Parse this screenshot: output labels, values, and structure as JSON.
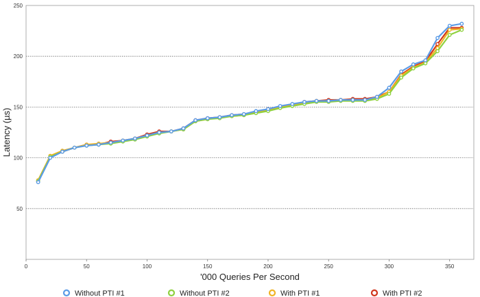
{
  "chart_data": {
    "type": "line",
    "title": "",
    "xlabel": "'000 Queries Per Second",
    "ylabel": "Latency (µs)",
    "xlim": [
      0,
      370
    ],
    "ylim": [
      0,
      250
    ],
    "xticks": [
      0,
      50,
      100,
      150,
      200,
      250,
      300,
      350
    ],
    "yticks": [
      50,
      100,
      150,
      200,
      250
    ],
    "grid": "horizontal-dotted",
    "legend_position": "bottom",
    "x": [
      10,
      20,
      30,
      40,
      50,
      60,
      70,
      80,
      90,
      100,
      110,
      120,
      130,
      140,
      150,
      160,
      170,
      180,
      190,
      200,
      210,
      220,
      230,
      240,
      250,
      260,
      270,
      280,
      290,
      300,
      310,
      320,
      330,
      340,
      350,
      360
    ],
    "series": [
      {
        "name": "Without PTI #1",
        "color": "#5b9be6",
        "values": [
          76,
          100,
          106,
          110,
          112,
          113,
          115,
          117,
          119,
          122,
          125,
          126,
          129,
          137,
          139,
          140,
          142,
          143,
          146,
          148,
          151,
          153,
          155,
          156,
          156,
          157,
          157,
          157,
          160,
          169,
          185,
          192,
          196,
          218,
          230,
          232
        ]
      },
      {
        "name": "Without PTI #2",
        "color": "#8fd13f",
        "values": [
          77,
          101,
          106,
          110,
          112,
          113,
          114,
          116,
          118,
          121,
          124,
          126,
          128,
          136,
          138,
          139,
          141,
          142,
          144,
          146,
          149,
          151,
          153,
          155,
          155,
          156,
          156,
          156,
          158,
          163,
          179,
          188,
          193,
          205,
          221,
          226
        ]
      },
      {
        "name": "With PTI #1",
        "color": "#f0b323",
        "values": [
          78,
          102,
          107,
          110,
          113,
          114,
          115,
          117,
          119,
          122,
          125,
          126,
          128,
          136,
          138,
          140,
          141,
          142,
          145,
          147,
          150,
          152,
          154,
          156,
          156,
          157,
          157,
          157,
          159,
          165,
          181,
          189,
          194,
          208,
          226,
          227
        ]
      },
      {
        "name": "With PTI #2",
        "color": "#d0341c",
        "values": [
          77,
          101,
          106,
          110,
          113,
          113,
          116,
          117,
          119,
          123,
          126,
          126,
          129,
          137,
          139,
          140,
          142,
          143,
          145,
          148,
          150,
          152,
          155,
          156,
          157,
          157,
          158,
          158,
          160,
          165,
          182,
          190,
          195,
          212,
          228,
          228
        ]
      }
    ]
  }
}
